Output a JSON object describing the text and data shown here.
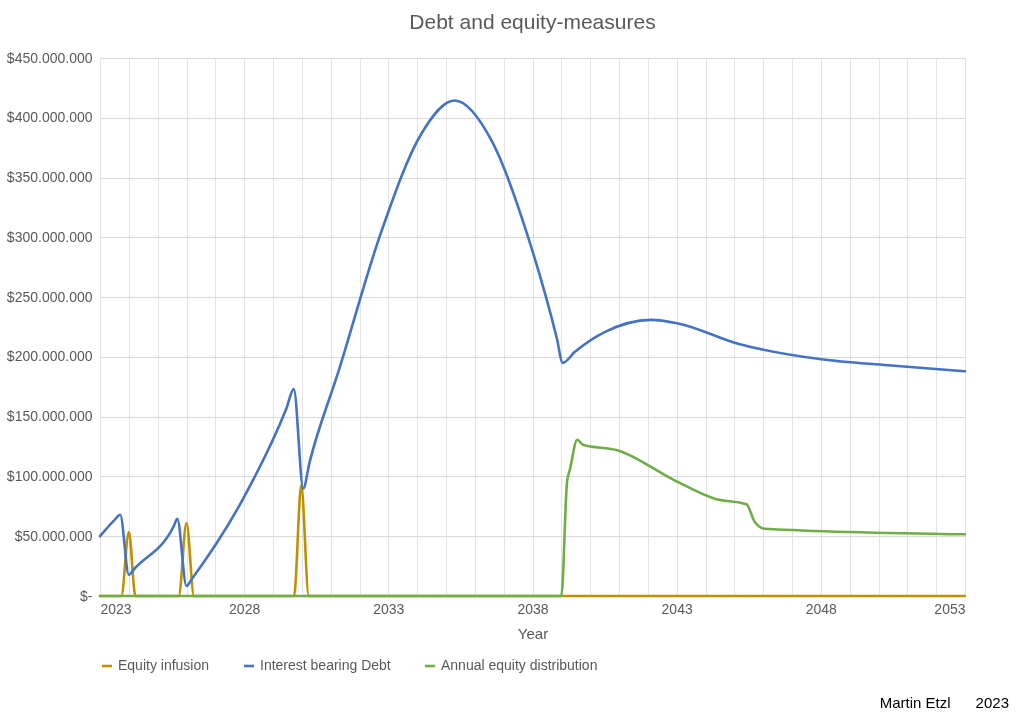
{
  "chart_data": {
    "type": "line",
    "title": "Debt and equity-measures",
    "xlabel": "Year",
    "xlim": [
      2023,
      2053
    ],
    "xticks": [
      2023,
      {
        "value": 2024,
        "label": null
      },
      {
        "value": 2025,
        "label": null
      },
      {
        "value": 2026,
        "label": null
      },
      {
        "value": 2027,
        "label": null
      },
      2028,
      {
        "value": 2029,
        "label": null
      },
      {
        "value": 2030,
        "label": null
      },
      {
        "value": 2031,
        "label": null
      },
      {
        "value": 2032,
        "label": null
      },
      2033,
      {
        "value": 2034,
        "label": null
      },
      {
        "value": 2035,
        "label": null
      },
      {
        "value": 2036,
        "label": null
      },
      {
        "value": 2037,
        "label": null
      },
      2038,
      {
        "value": 2039,
        "label": null
      },
      {
        "value": 2040,
        "label": null
      },
      {
        "value": 2041,
        "label": null
      },
      {
        "value": 2042,
        "label": null
      },
      2043,
      {
        "value": 2044,
        "label": null
      },
      {
        "value": 2045,
        "label": null
      },
      {
        "value": 2046,
        "label": null
      },
      {
        "value": 2047,
        "label": null
      },
      2048,
      {
        "value": 2049,
        "label": null
      },
      {
        "value": 2050,
        "label": null
      },
      {
        "value": 2051,
        "label": null
      },
      {
        "value": 2052,
        "label": null
      },
      2053
    ],
    "ylim": [
      0,
      450000000
    ],
    "yticks": [
      {
        "value": 0,
        "label": "$-"
      },
      {
        "value": 50000000,
        "label": "$50.000.000"
      },
      {
        "value": 100000000,
        "label": "$100.000.000"
      },
      {
        "value": 150000000,
        "label": "$150.000.000"
      },
      {
        "value": 200000000,
        "label": "$200.000.000"
      },
      {
        "value": 250000000,
        "label": "$250.000.000"
      },
      {
        "value": 300000000,
        "label": "$300.000.000"
      },
      {
        "value": 350000000,
        "label": "$350.000.000"
      },
      {
        "value": 400000000,
        "label": "$400.000.000"
      },
      {
        "value": 450000000,
        "label": "$450.000.000"
      }
    ],
    "grid": true,
    "legend": "bottom",
    "annotations": [
      "Martin Etzl      2023"
    ],
    "series": [
      {
        "name": "Equity infusion",
        "color": "#bf9000",
        "x": [
          2023,
          2023.74,
          2024.0,
          2024.23,
          2025.73,
          2026.0,
          2026.26,
          2029.73,
          2029.98,
          2030.24,
          2053
        ],
        "values": [
          0,
          0,
          53500000,
          0,
          0,
          61000000,
          0,
          0,
          92500000,
          0,
          0
        ]
      },
      {
        "name": "Interest bearing Debt",
        "color": "#4472c4",
        "x": [
          2023,
          2023.5,
          2023.7,
          2024.0,
          2024.2,
          2025.57,
          2025.68,
          2026.0,
          2026.19,
          2027.9,
          2029.46,
          2029.72,
          2030.05,
          2030.27,
          2031.26,
          2032.76,
          2034.13,
          2035.3,
          2036.6,
          2037.85,
          2038.84,
          2039.05,
          2039.46,
          2040.5,
          2042.12,
          2043.05,
          2045.13,
          2048.02,
          2050.33,
          2053
        ],
        "values": [
          50000000,
          63500000,
          68000000,
          17800000,
          23000000,
          59000000,
          64600000,
          8400000,
          14500000,
          78600000,
          156600000,
          173000000,
          90000000,
          112000000,
          187000000,
          305000000,
          386000000,
          414500000,
          380000000,
          300000000,
          216000000,
          195000000,
          204000000,
          220700000,
          231000000,
          228000000,
          211000000,
          198000000,
          193000000,
          188000000
        ]
      },
      {
        "name": "Annual equity distribution",
        "color": "#70ad47",
        "x": [
          2023,
          2039.0,
          2039.2,
          2039.3,
          2039.55,
          2039.75,
          2040.97,
          2042.93,
          2044.32,
          2045.42,
          2045.71,
          2046.06,
          2053
        ],
        "values": [
          0,
          0,
          96000000,
          106000000,
          130700000,
          126500000,
          121800000,
          96700000,
          81400000,
          76700000,
          61900000,
          56300000,
          51600000
        ]
      }
    ]
  }
}
